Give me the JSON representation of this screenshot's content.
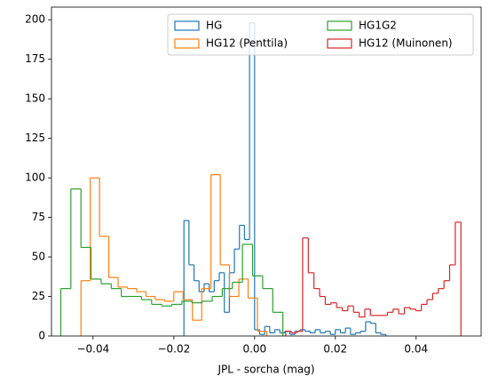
{
  "chart_data": {
    "type": "histogram",
    "xlabel": "JPL - sorcha (mag)",
    "xlim": [
      -0.0503,
      0.0561
    ],
    "ylim": [
      0,
      208
    ],
    "xticks": [
      {
        "value": -0.04,
        "label": "−0.04"
      },
      {
        "value": -0.02,
        "label": "−0.02"
      },
      {
        "value": 0,
        "label": "0.00"
      },
      {
        "value": 0.02,
        "label": "0.02"
      },
      {
        "value": 0.04,
        "label": "0.04"
      }
    ],
    "yticks": [
      0,
      25,
      50,
      75,
      100,
      125,
      150,
      175,
      200
    ],
    "legend": "upper right",
    "legend_columns": 2,
    "series": [
      {
        "name": "HG",
        "color": "#1f77b4",
        "bins": [
          -0.0175,
          -0.01625,
          -0.015,
          -0.01375,
          -0.0125,
          -0.01125,
          -0.01,
          -0.00875,
          -0.0075,
          -0.00625,
          -0.005,
          -0.00375,
          -0.0025,
          -0.00125,
          0,
          0.00125,
          0.0025,
          0.00375,
          0.005,
          0.00625,
          0.0075,
          0.00875,
          0.01,
          0.01125,
          0.0125,
          0.01375,
          0.015,
          0.01625,
          0.0175,
          0.01875,
          0.02,
          0.02125,
          0.0225,
          0.02375,
          0.025,
          0.02625,
          0.0275,
          0.02875,
          0.03,
          0.03125,
          0.0325
        ],
        "values": [
          73,
          45,
          35,
          28,
          33,
          28,
          35,
          40,
          15,
          40,
          55,
          70,
          61,
          198,
          4,
          1,
          6,
          2,
          4,
          2,
          3,
          1,
          3,
          4,
          3,
          2,
          4,
          2,
          3,
          1,
          4,
          2,
          5,
          1,
          2,
          3,
          9,
          8,
          2,
          1
        ]
      },
      {
        "name": "HG12 (Penttila)",
        "color": "#ff7f0e",
        "bins": [
          -0.043,
          -0.0407,
          -0.0384,
          -0.0361,
          -0.0338,
          -0.0315,
          -0.0292,
          -0.0269,
          -0.0246,
          -0.0223,
          -0.02,
          -0.0177,
          -0.0154,
          -0.0131,
          -0.0108,
          -0.0085,
          -0.0062,
          -0.0039,
          -0.0016,
          0.0007,
          0.003
        ],
        "values": [
          35,
          100,
          63,
          37,
          31,
          30,
          28,
          25,
          23,
          22,
          28,
          23,
          10,
          30,
          102,
          45,
          25,
          36,
          24,
          3
        ]
      },
      {
        "name": "HG1G2",
        "color": "#2ca02c",
        "bins": [
          -0.048,
          -0.0455,
          -0.043,
          -0.0405,
          -0.038,
          -0.0355,
          -0.033,
          -0.0305,
          -0.028,
          -0.0255,
          -0.023,
          -0.0205,
          -0.018,
          -0.0155,
          -0.013,
          -0.0105,
          -0.008,
          -0.0055,
          -0.003,
          -0.0005,
          0.002,
          0.0045,
          0.007
        ],
        "values": [
          30,
          93,
          56,
          36,
          33,
          30,
          25,
          25,
          23,
          20,
          19,
          20,
          22,
          21,
          22,
          25,
          30,
          34,
          58,
          38,
          30,
          15
        ]
      },
      {
        "name": "HG12 (Muinonen)",
        "color": "#d62728",
        "bins": [
          0.0077,
          0.0091,
          0.0105,
          0.0119,
          0.0133,
          0.0147,
          0.0161,
          0.0175,
          0.0189,
          0.0203,
          0.0217,
          0.0231,
          0.0245,
          0.0259,
          0.0273,
          0.0287,
          0.0301,
          0.0315,
          0.0329,
          0.0343,
          0.0357,
          0.0371,
          0.0385,
          0.0399,
          0.0413,
          0.0427,
          0.0441,
          0.0455,
          0.0469,
          0.0483,
          0.0497,
          0.0511
        ],
        "values": [
          3,
          2,
          3,
          62,
          40,
          30,
          25,
          20,
          21,
          18,
          16,
          19,
          15,
          12,
          17,
          13,
          13,
          13,
          15,
          17,
          14,
          18,
          17,
          16,
          20,
          23,
          27,
          30,
          35,
          45,
          72
        ]
      }
    ]
  }
}
